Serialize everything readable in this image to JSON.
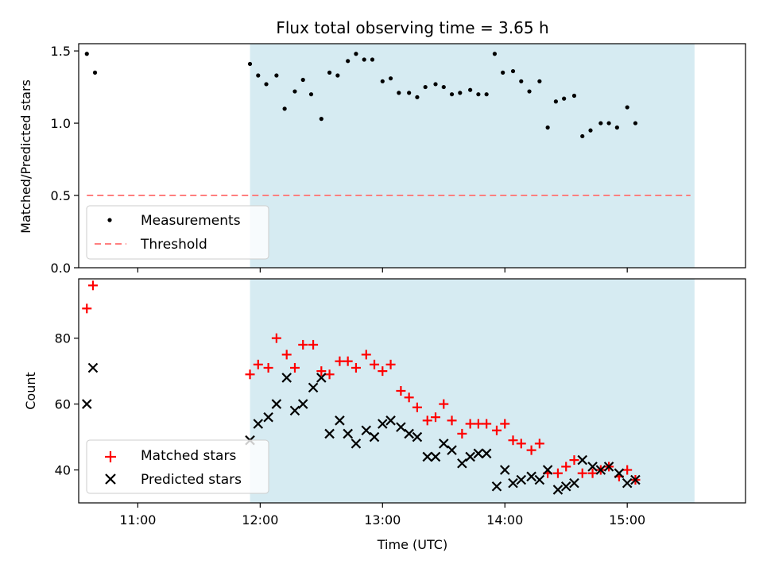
{
  "chart_data": {
    "type": "scatter",
    "title": "Flux total observing time = 3.65 h",
    "xlabel": "Time (UTC)",
    "x_ticks": [
      "11:00",
      "12:00",
      "13:00",
      "14:00",
      "15:00"
    ],
    "xlim": [
      "10:31",
      "15:58"
    ],
    "shaded_interval": [
      "11:55",
      "15:33"
    ],
    "shade_color": "#add8e6",
    "panels": [
      {
        "ylabel": "Matched/Predicted stars",
        "ylim": [
          0.0,
          1.55
        ],
        "y_ticks": [
          "0.0",
          "0.5",
          "1.0",
          "1.5"
        ],
        "legend": [
          "Measurements",
          "Threshold"
        ],
        "legend_position": "lower-left",
        "threshold": {
          "name": "Threshold",
          "value": 0.5,
          "x_range": [
            "10:35",
            "15:31"
          ],
          "color": "#ff7f7f"
        },
        "series": [
          {
            "name": "Measurements",
            "marker": "dot",
            "color": "#000000",
            "points": [
              [
                "10:35",
                1.48
              ],
              [
                "10:39",
                1.35
              ],
              [
                "11:55",
                1.41
              ],
              [
                "11:59",
                1.33
              ],
              [
                "12:03",
                1.27
              ],
              [
                "12:08",
                1.33
              ],
              [
                "12:12",
                1.1
              ],
              [
                "12:17",
                1.22
              ],
              [
                "12:21",
                1.3
              ],
              [
                "12:25",
                1.2
              ],
              [
                "12:30",
                1.03
              ],
              [
                "12:34",
                1.35
              ],
              [
                "12:38",
                1.33
              ],
              [
                "12:43",
                1.43
              ],
              [
                "12:47",
                1.48
              ],
              [
                "12:51",
                1.44
              ],
              [
                "12:55",
                1.44
              ],
              [
                "13:00",
                1.29
              ],
              [
                "13:04",
                1.31
              ],
              [
                "13:08",
                1.21
              ],
              [
                "13:13",
                1.21
              ],
              [
                "13:17",
                1.18
              ],
              [
                "13:21",
                1.25
              ],
              [
                "13:26",
                1.27
              ],
              [
                "13:30",
                1.25
              ],
              [
                "13:34",
                1.2
              ],
              [
                "13:38",
                1.21
              ],
              [
                "13:43",
                1.23
              ],
              [
                "13:47",
                1.2
              ],
              [
                "13:51",
                1.2
              ],
              [
                "13:55",
                1.48
              ],
              [
                "13:59",
                1.35
              ],
              [
                "14:04",
                1.36
              ],
              [
                "14:08",
                1.29
              ],
              [
                "14:12",
                1.22
              ],
              [
                "14:17",
                1.29
              ],
              [
                "14:21",
                0.97
              ],
              [
                "14:25",
                1.15
              ],
              [
                "14:29",
                1.17
              ],
              [
                "14:34",
                1.19
              ],
              [
                "14:38",
                0.91
              ],
              [
                "14:42",
                0.95
              ],
              [
                "14:47",
                1.0
              ],
              [
                "14:51",
                1.0
              ],
              [
                "14:55",
                0.97
              ],
              [
                "15:00",
                1.11
              ],
              [
                "15:04",
                1.0
              ]
            ]
          }
        ]
      },
      {
        "ylabel": "Count",
        "ylim": [
          30,
          98
        ],
        "y_ticks": [
          "40",
          "60",
          "80"
        ],
        "legend": [
          "Matched stars",
          "Predicted stars"
        ],
        "legend_position": "lower-left",
        "series": [
          {
            "name": "Matched stars",
            "marker": "plus",
            "color": "#ff0000",
            "points": [
              [
                "10:35",
                89
              ],
              [
                "10:38",
                96
              ],
              [
                "11:55",
                69
              ],
              [
                "11:59",
                72
              ],
              [
                "12:04",
                71
              ],
              [
                "12:08",
                80
              ],
              [
                "12:13",
                75
              ],
              [
                "12:17",
                71
              ],
              [
                "12:21",
                78
              ],
              [
                "12:26",
                78
              ],
              [
                "12:30",
                70
              ],
              [
                "12:34",
                69
              ],
              [
                "12:39",
                73
              ],
              [
                "12:43",
                73
              ],
              [
                "12:47",
                71
              ],
              [
                "12:52",
                75
              ],
              [
                "12:56",
                72
              ],
              [
                "13:00",
                70
              ],
              [
                "13:04",
                72
              ],
              [
                "13:09",
                64
              ],
              [
                "13:13",
                62
              ],
              [
                "13:17",
                59
              ],
              [
                "13:22",
                55
              ],
              [
                "13:26",
                56
              ],
              [
                "13:30",
                60
              ],
              [
                "13:34",
                55
              ],
              [
                "13:39",
                51
              ],
              [
                "13:43",
                54
              ],
              [
                "13:47",
                54
              ],
              [
                "13:51",
                54
              ],
              [
                "13:56",
                52
              ],
              [
                "14:00",
                54
              ],
              [
                "14:04",
                49
              ],
              [
                "14:08",
                48
              ],
              [
                "14:13",
                46
              ],
              [
                "14:17",
                48
              ],
              [
                "14:21",
                39
              ],
              [
                "14:26",
                39
              ],
              [
                "14:30",
                41
              ],
              [
                "14:34",
                43
              ],
              [
                "14:38",
                39
              ],
              [
                "14:43",
                39
              ],
              [
                "14:47",
                40
              ],
              [
                "14:51",
                41
              ],
              [
                "14:56",
                38
              ],
              [
                "15:00",
                40
              ],
              [
                "15:04",
                37
              ]
            ]
          },
          {
            "name": "Predicted stars",
            "marker": "x",
            "color": "#000000",
            "points": [
              [
                "10:35",
                60
              ],
              [
                "10:38",
                71
              ],
              [
                "11:55",
                49
              ],
              [
                "11:59",
                54
              ],
              [
                "12:04",
                56
              ],
              [
                "12:08",
                60
              ],
              [
                "12:13",
                68
              ],
              [
                "12:17",
                58
              ],
              [
                "12:21",
                60
              ],
              [
                "12:26",
                65
              ],
              [
                "12:30",
                68
              ],
              [
                "12:34",
                51
              ],
              [
                "12:39",
                55
              ],
              [
                "12:43",
                51
              ],
              [
                "12:47",
                48
              ],
              [
                "12:52",
                52
              ],
              [
                "12:56",
                50
              ],
              [
                "13:00",
                54
              ],
              [
                "13:04",
                55
              ],
              [
                "13:09",
                53
              ],
              [
                "13:13",
                51
              ],
              [
                "13:17",
                50
              ],
              [
                "13:22",
                44
              ],
              [
                "13:26",
                44
              ],
              [
                "13:30",
                48
              ],
              [
                "13:34",
                46
              ],
              [
                "13:39",
                42
              ],
              [
                "13:43",
                44
              ],
              [
                "13:47",
                45
              ],
              [
                "13:51",
                45
              ],
              [
                "13:56",
                35
              ],
              [
                "14:00",
                40
              ],
              [
                "14:04",
                36
              ],
              [
                "14:08",
                37
              ],
              [
                "14:13",
                38
              ],
              [
                "14:17",
                37
              ],
              [
                "14:21",
                40
              ],
              [
                "14:26",
                34
              ],
              [
                "14:30",
                35
              ],
              [
                "14:34",
                36
              ],
              [
                "14:38",
                43
              ],
              [
                "14:43",
                41
              ],
              [
                "14:47",
                40
              ],
              [
                "14:51",
                41
              ],
              [
                "14:56",
                39
              ],
              [
                "15:00",
                36
              ],
              [
                "15:04",
                37
              ]
            ]
          }
        ]
      }
    ]
  }
}
